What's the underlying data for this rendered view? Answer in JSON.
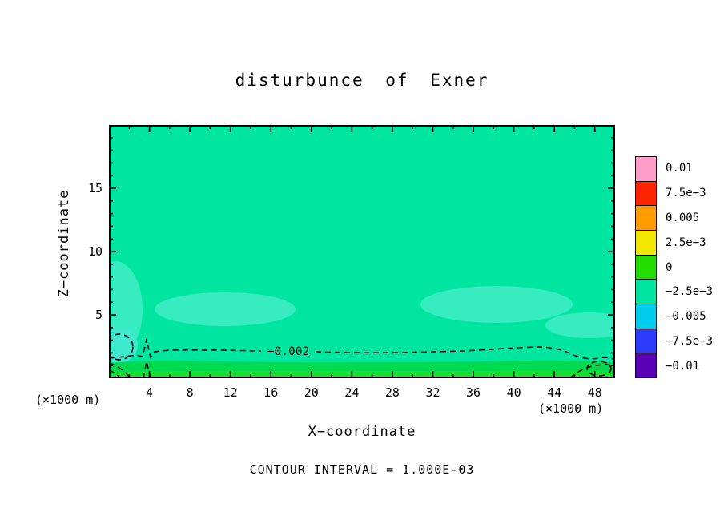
{
  "chart_data": {
    "type": "heatmap",
    "title": "disturbunce of Exner",
    "xlabel": "X−coordinate",
    "ylabel": "Z−coordinate",
    "axis_unit": "(×1000 m)",
    "contour_interval_text": "CONTOUR INTERVAL = 1.000E-03",
    "contour_line_label": "−0.002",
    "x_axis": {
      "range": [
        0,
        50
      ],
      "labels": [
        4,
        8,
        12,
        16,
        20,
        24,
        28,
        32,
        36,
        40,
        44,
        48
      ],
      "minor_step": 2,
      "major_step": 4
    },
    "y_axis": {
      "range": [
        0,
        20
      ],
      "labels": [
        5,
        10,
        15
      ],
      "minor_step": 1,
      "major_step": 5
    },
    "colorbar": {
      "labels": [
        "0.01",
        "7.5e−3",
        "0.005",
        "2.5e−3",
        "0",
        "−2.5e−3",
        "−0.005",
        "−7.5e−3",
        "−0.01"
      ],
      "colors": [
        "#ff9cc8",
        "#ff2400",
        "#ff9c00",
        "#f2e700",
        "#22dd00",
        "#00e6a0",
        "#00ccee",
        "#2b3cff",
        "#5a00b4"
      ]
    },
    "colors": {
      "main_fill": "#00e6a0",
      "patch_fill": "#36ecc0",
      "corner_patch_fill": "#3fe9cf",
      "bottom_strip_fill": "#00da50",
      "bottom_edge_fill": "#17e030",
      "contour": "#000000",
      "frame": "#000000"
    },
    "field_description": "Exner function disturbance, mostly in the −2.5e−3 to 0 band with a dashed −0.002 contour near the surface"
  }
}
